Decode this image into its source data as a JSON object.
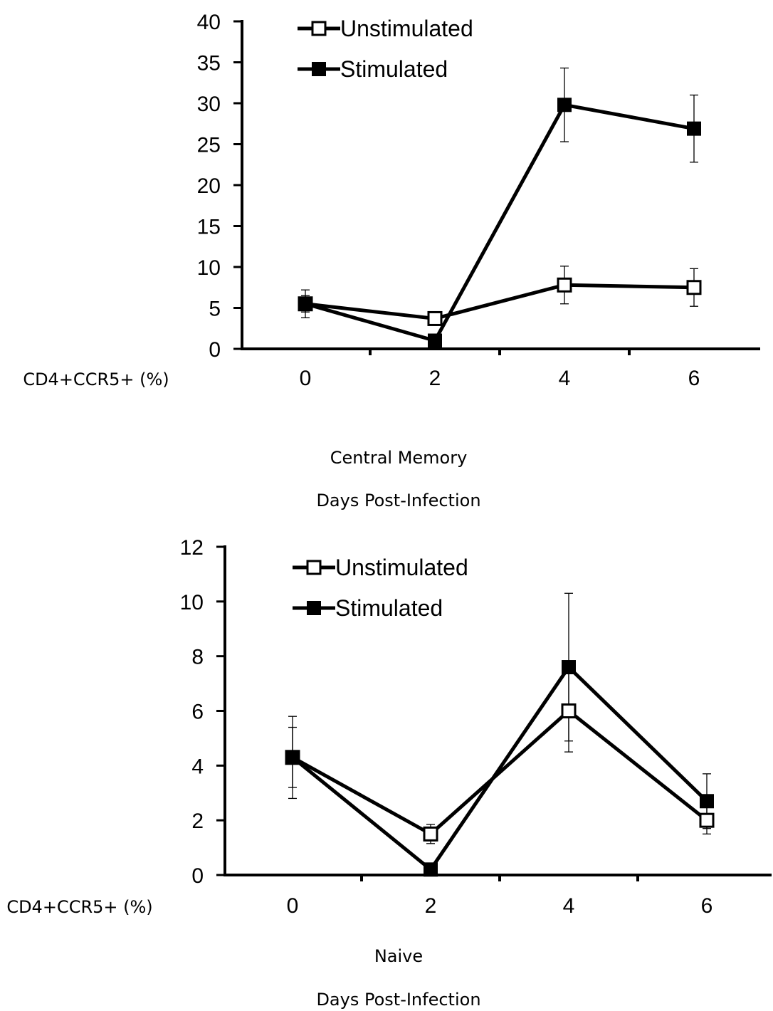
{
  "chart_data": [
    {
      "type": "line",
      "title": "Central Memory",
      "xlabel": "Days Post-Infection",
      "ylabel": "CD4+CCR5+ (%)",
      "x": [
        0,
        2,
        4,
        6
      ],
      "xlim": [
        -1,
        7
      ],
      "ylim": [
        0,
        40
      ],
      "yticks": [
        0,
        5,
        10,
        15,
        20,
        25,
        30,
        35,
        40
      ],
      "xticks": [
        0,
        2,
        4,
        6
      ],
      "legend_position": "top-left",
      "series": [
        {
          "name": "Unstimulated",
          "marker": "open-square",
          "values": [
            5.5,
            3.7,
            7.8,
            7.5
          ],
          "errors": [
            1.7,
            0.0,
            2.3,
            2.3
          ]
        },
        {
          "name": "Stimulated",
          "marker": "filled-square",
          "values": [
            5.5,
            1.0,
            29.8,
            26.9
          ],
          "errors": [
            1.0,
            0.0,
            4.5,
            4.1
          ]
        }
      ]
    },
    {
      "type": "line",
      "title": "Naive",
      "xlabel": "Days Post-Infection",
      "ylabel": "CD4+CCR5+ (%)",
      "x": [
        0,
        2,
        4,
        6
      ],
      "xlim": [
        -1,
        7
      ],
      "ylim": [
        0,
        12
      ],
      "yticks": [
        0,
        2,
        4,
        6,
        8,
        10,
        12
      ],
      "xticks": [
        0,
        2,
        4,
        6
      ],
      "legend_position": "top-left",
      "series": [
        {
          "name": "Unstimulated",
          "marker": "open-square",
          "values": [
            4.3,
            1.5,
            6.0,
            2.0
          ],
          "errors": [
            1.5,
            0.35,
            1.5,
            0.5
          ]
        },
        {
          "name": "Stimulated",
          "marker": "filled-square",
          "values": [
            4.3,
            0.2,
            7.6,
            2.7
          ],
          "errors": [
            1.1,
            0.0,
            2.7,
            1.0
          ]
        }
      ]
    }
  ]
}
